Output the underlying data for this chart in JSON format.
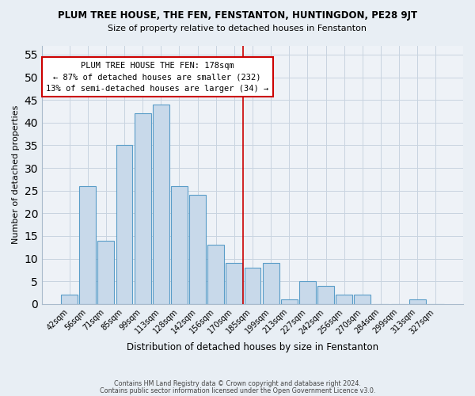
{
  "title": "PLUM TREE HOUSE, THE FEN, FENSTANTON, HUNTINGDON, PE28 9JT",
  "subtitle": "Size of property relative to detached houses in Fenstanton",
  "xlabel": "Distribution of detached houses by size in Fenstanton",
  "ylabel": "Number of detached properties",
  "bar_labels": [
    "42sqm",
    "56sqm",
    "71sqm",
    "85sqm",
    "99sqm",
    "113sqm",
    "128sqm",
    "142sqm",
    "156sqm",
    "170sqm",
    "185sqm",
    "199sqm",
    "213sqm",
    "227sqm",
    "242sqm",
    "256sqm",
    "270sqm",
    "284sqm",
    "299sqm",
    "313sqm",
    "327sqm"
  ],
  "bar_heights": [
    2,
    26,
    14,
    35,
    42,
    44,
    26,
    24,
    13,
    9,
    8,
    9,
    1,
    5,
    4,
    2,
    2,
    0,
    0,
    1,
    0
  ],
  "bar_color": "#c8d9ea",
  "bar_edge_color": "#5a9dc8",
  "vline_x": 9.5,
  "vline_color": "#cc0000",
  "annotation_title": "PLUM TREE HOUSE THE FEN: 178sqm",
  "annotation_line1": "← 87% of detached houses are smaller (232)",
  "annotation_line2": "13% of semi-detached houses are larger (34) →",
  "ylim": [
    0,
    57
  ],
  "yticks": [
    0,
    5,
    10,
    15,
    20,
    25,
    30,
    35,
    40,
    45,
    50,
    55
  ],
  "footer1": "Contains HM Land Registry data © Crown copyright and database right 2024.",
  "footer2": "Contains public sector information licensed under the Open Government Licence v3.0.",
  "bg_color": "#e8eef4",
  "plot_bg_color": "#eef2f7",
  "grid_color": "#c8d4e0"
}
